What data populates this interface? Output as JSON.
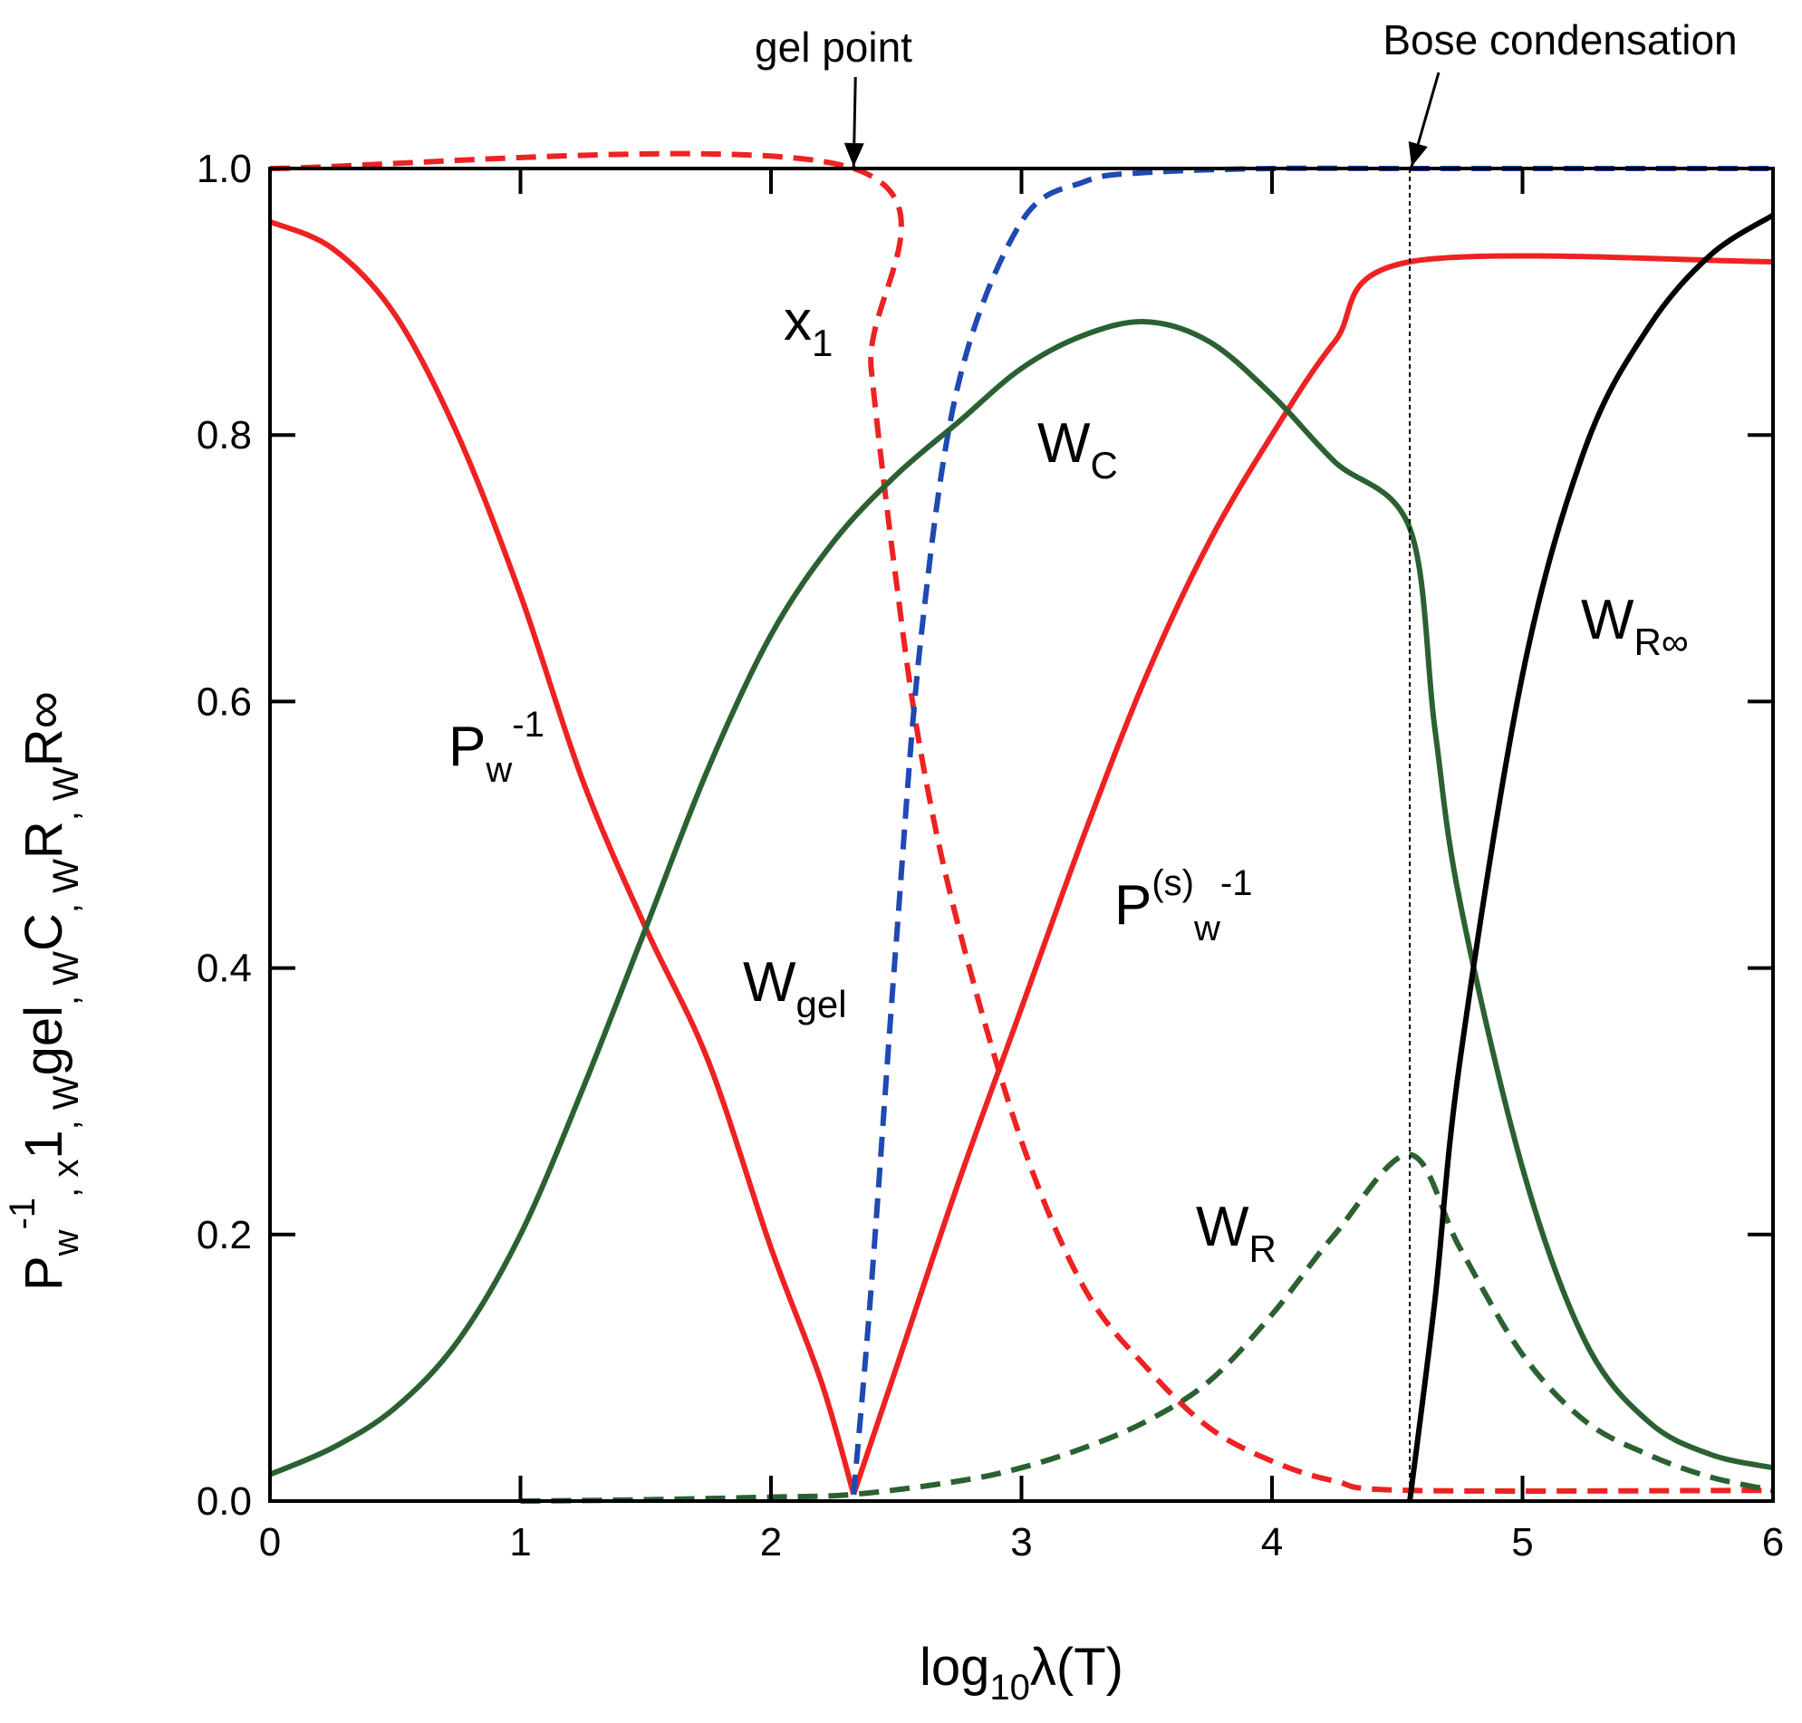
{
  "chart_data": {
    "type": "line",
    "title": "",
    "xlabel": {
      "main": "log",
      "sub": "10",
      "tail": "λ(T)"
    },
    "ylabel_parts": [
      "P",
      "w",
      "-1",
      ",  x",
      "1",
      ",  W",
      "gel",
      ",  W",
      "C",
      ", W",
      "R",
      ", W",
      "R∞"
    ],
    "xlim": [
      0,
      6
    ],
    "ylim": [
      0,
      1
    ],
    "xticks": [
      "0",
      "1",
      "2",
      "3",
      "4",
      "5",
      "6"
    ],
    "yticks": [
      "0.0",
      "0.2",
      "0.4",
      "0.6",
      "0.8",
      "1.0"
    ],
    "annotations": [
      {
        "text": "gel point",
        "x": 2.33
      },
      {
        "text": "Bose condensation",
        "x": 4.55
      }
    ],
    "colors": {
      "red": "#ee2222",
      "blue": "#1f49b3",
      "green": "#2b6132",
      "black": "#000000"
    },
    "series": [
      {
        "label_parts": [
          "P",
          "w",
          "-1"
        ],
        "color": "red",
        "dash": false,
        "x": [
          0,
          0.25,
          0.5,
          0.75,
          1.0,
          1.25,
          1.5,
          1.75,
          2.0,
          2.2,
          2.33
        ],
        "y": [
          0.96,
          0.94,
          0.89,
          0.8,
          0.68,
          0.54,
          0.43,
          0.33,
          0.19,
          0.09,
          0.005
        ]
      },
      {
        "label_parts": [
          "P",
          "(s)",
          "w",
          "-1"
        ],
        "color": "red",
        "dash": false,
        "x": [
          2.33,
          2.5,
          2.75,
          3.0,
          3.25,
          3.5,
          3.75,
          4.0,
          4.25,
          4.55,
          6.0
        ],
        "y": [
          0.005,
          0.1,
          0.24,
          0.37,
          0.5,
          0.62,
          0.72,
          0.8,
          0.87,
          0.93,
          0.93
        ]
      },
      {
        "label_parts": [
          "x",
          "1"
        ],
        "color": "red",
        "dash": true,
        "x": [
          0,
          2.33,
          2.4,
          2.5,
          2.6,
          2.75,
          3.0,
          3.25,
          3.5,
          3.75,
          4.0,
          4.25,
          4.55,
          6.0
        ],
        "y": [
          1.0,
          1.0,
          0.85,
          0.69,
          0.56,
          0.43,
          0.27,
          0.16,
          0.1,
          0.055,
          0.03,
          0.015,
          0.008,
          0.008
        ]
      },
      {
        "label_parts": [
          "W",
          "gel"
        ],
        "color": "blue",
        "dash": true,
        "x": [
          2.33,
          2.4,
          2.5,
          2.6,
          2.75,
          3.0,
          3.25,
          3.5,
          4.0,
          4.55,
          6.0
        ],
        "y": [
          0.005,
          0.16,
          0.42,
          0.65,
          0.84,
          0.96,
          0.99,
          0.997,
          1.0,
          1.0,
          1.0
        ]
      },
      {
        "label_parts": [
          "W",
          "C"
        ],
        "color": "green",
        "dash": false,
        "x": [
          0,
          0.25,
          0.5,
          0.75,
          1.0,
          1.25,
          1.5,
          1.75,
          2.0,
          2.25,
          2.5,
          2.75,
          3.0,
          3.25,
          3.5,
          3.75,
          4.0,
          4.25,
          4.55,
          4.65,
          4.75,
          5.0,
          5.25,
          5.5,
          5.75,
          6.0
        ],
        "y": [
          0.02,
          0.04,
          0.07,
          0.12,
          0.2,
          0.31,
          0.43,
          0.55,
          0.65,
          0.72,
          0.77,
          0.81,
          0.85,
          0.875,
          0.885,
          0.87,
          0.83,
          0.78,
          0.73,
          0.58,
          0.45,
          0.25,
          0.12,
          0.06,
          0.035,
          0.025
        ]
      },
      {
        "label_parts": [
          "W",
          "R"
        ],
        "color": "green",
        "dash": true,
        "x": [
          1.0,
          1.5,
          2.0,
          2.33,
          2.75,
          3.0,
          3.25,
          3.5,
          3.75,
          4.0,
          4.25,
          4.55,
          4.75,
          5.0,
          5.25,
          5.5,
          5.75,
          6.0
        ],
        "y": [
          0.0,
          0.001,
          0.003,
          0.005,
          0.015,
          0.025,
          0.04,
          0.06,
          0.09,
          0.14,
          0.2,
          0.26,
          0.19,
          0.11,
          0.06,
          0.035,
          0.018,
          0.008
        ]
      },
      {
        "label_parts": [
          "W",
          "R∞"
        ],
        "color": "black",
        "dash": false,
        "x": [
          4.55,
          4.65,
          4.75,
          5.0,
          5.25,
          5.5,
          5.75,
          6.0
        ],
        "y": [
          0.0,
          0.15,
          0.33,
          0.62,
          0.79,
          0.88,
          0.935,
          0.965
        ]
      }
    ]
  }
}
